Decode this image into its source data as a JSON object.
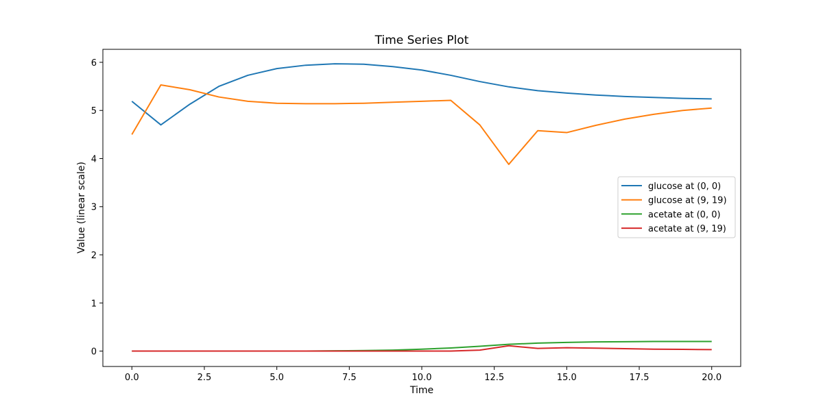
{
  "chart_data": {
    "type": "line",
    "title": "Time Series Plot",
    "xlabel": "Time",
    "ylabel": "Value (linear scale)",
    "xlim": [
      -1.0,
      21.0
    ],
    "ylim": [
      -0.32,
      6.27
    ],
    "xticks": [
      0.0,
      2.5,
      5.0,
      7.5,
      10.0,
      12.5,
      15.0,
      17.5,
      20.0
    ],
    "xtick_labels": [
      "0.0",
      "2.5",
      "5.0",
      "7.5",
      "10.0",
      "12.5",
      "15.0",
      "17.5",
      "20.0"
    ],
    "yticks": [
      0,
      1,
      2,
      3,
      4,
      5,
      6
    ],
    "ytick_labels": [
      "0",
      "1",
      "2",
      "3",
      "4",
      "5",
      "6"
    ],
    "grid": false,
    "legend_position": "center-right",
    "x": [
      0,
      1,
      2,
      3,
      4,
      5,
      6,
      7,
      8,
      9,
      10,
      11,
      12,
      13,
      14,
      15,
      16,
      17,
      18,
      19,
      20
    ],
    "series": [
      {
        "name": "glucose at (0, 0)",
        "color": "#1f77b4",
        "values": [
          5.19,
          4.7,
          5.13,
          5.5,
          5.73,
          5.87,
          5.94,
          5.97,
          5.96,
          5.91,
          5.84,
          5.73,
          5.6,
          5.49,
          5.41,
          5.36,
          5.32,
          5.29,
          5.27,
          5.25,
          5.24
        ]
      },
      {
        "name": "glucose at (9, 19)",
        "color": "#ff7f0e",
        "values": [
          4.5,
          5.53,
          5.43,
          5.28,
          5.19,
          5.15,
          5.14,
          5.14,
          5.15,
          5.17,
          5.19,
          5.21,
          4.7,
          3.88,
          4.58,
          4.54,
          4.69,
          4.82,
          4.92,
          5.0,
          5.05
        ]
      },
      {
        "name": "acetate at (0, 0)",
        "color": "#2ca02c",
        "values": [
          0.0,
          0.0,
          0.0,
          0.0,
          0.0,
          0.0,
          0.0,
          0.005,
          0.01,
          0.02,
          0.04,
          0.065,
          0.1,
          0.14,
          0.165,
          0.18,
          0.19,
          0.195,
          0.2,
          0.2,
          0.2
        ]
      },
      {
        "name": "acetate at (9, 19)",
        "color": "#d62728",
        "values": [
          0.0,
          0.0,
          0.0,
          0.0,
          0.0,
          0.0,
          0.0,
          0.0,
          0.0,
          0.0,
          0.0,
          0.0,
          0.02,
          0.11,
          0.055,
          0.07,
          0.06,
          0.05,
          0.04,
          0.035,
          0.03
        ]
      }
    ]
  }
}
